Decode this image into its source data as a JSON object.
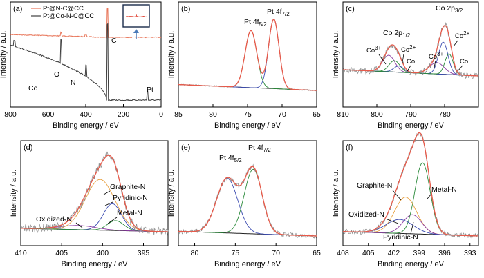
{
  "figure": {
    "panels": [
      {
        "id": "a",
        "label": "(a)",
        "type": "line",
        "xlabel": "Binding energy / eV",
        "ylabel": "Intensity / a.u.",
        "xlim": [
          800,
          0
        ],
        "xticks": [
          800,
          600,
          400,
          200,
          0
        ],
        "legend": [
          {
            "name": "Pt@N-C@CC",
            "color": "#e8765a"
          },
          {
            "name": "Pt@Co-N-C@CC",
            "color": "#404040"
          }
        ],
        "peak_labels": [
          {
            "text": "Co",
            "x": 778
          },
          {
            "text": "O",
            "x": 531
          },
          {
            "text": "N",
            "x": 399
          },
          {
            "text": "C",
            "x": 284
          },
          {
            "text": "Pt",
            "x": 71
          }
        ]
      },
      {
        "id": "b",
        "label": "(b)",
        "type": "line",
        "xlabel": "Binding energy / eV",
        "ylabel": "Intensity / a.u.",
        "xlim": [
          85,
          65
        ],
        "xticks": [
          85,
          80,
          75,
          70,
          65
        ],
        "peak_labels": [
          {
            "text": "Pt 4f",
            "sub": "5/2"
          },
          {
            "text": "Pt 4f",
            "sub": "7/2"
          }
        ],
        "peaks": [
          {
            "center": 74.5,
            "height": 0.78,
            "width": 0.85,
            "color": "#2a8a3a"
          },
          {
            "center": 71.2,
            "height": 0.95,
            "width": 0.75,
            "color": "#3a4ab0"
          }
        ]
      },
      {
        "id": "c",
        "label": "(c)",
        "type": "line",
        "xlabel": "Binding energy / eV",
        "ylabel": "Intensity / a.u.",
        "xlim": [
          810,
          770
        ],
        "xticks": [
          810,
          800,
          790,
          780
        ],
        "peak_labels": [
          {
            "text": "Co 2p",
            "sub": "3/2"
          },
          {
            "text": "Co 2p",
            "sub": "1/2"
          },
          {
            "text": "Co",
            "sup": "3+"
          },
          {
            "text": "Co",
            "sup": "2+"
          },
          {
            "text": "Co"
          },
          {
            "text": "Co",
            "sup": "3+"
          },
          {
            "text": "Co",
            "sup": "2+"
          },
          {
            "text": "Co"
          }
        ],
        "peaks": [
          {
            "center": 796.5,
            "height": 0.32,
            "width": 1.8,
            "color": "#8a3aa0"
          },
          {
            "center": 794.8,
            "height": 0.22,
            "width": 1.6,
            "color": "#2a8a3a"
          },
          {
            "center": 793.5,
            "height": 0.12,
            "width": 1.5,
            "color": "#3a4ab0"
          },
          {
            "center": 782.3,
            "height": 0.22,
            "width": 2.2,
            "color": "#8a3aa0"
          },
          {
            "center": 780.4,
            "height": 0.62,
            "width": 1.4,
            "color": "#3a4ab0"
          },
          {
            "center": 778.7,
            "height": 0.4,
            "width": 1.2,
            "color": "#2a8a3a"
          }
        ]
      },
      {
        "id": "d",
        "label": "(d)",
        "type": "line",
        "xlabel": "Binding energy / eV",
        "ylabel": "Intensity / a.u.",
        "xlim": [
          410,
          392
        ],
        "xticks": [
          410,
          405,
          400,
          395
        ],
        "peak_labels": [
          {
            "text": "Graphite-N"
          },
          {
            "text": "Pyridinic-N"
          },
          {
            "text": "Metal-N"
          },
          {
            "text": "Oxidized-N"
          }
        ],
        "peaks": [
          {
            "center": 400.3,
            "height": 0.72,
            "width": 1.8,
            "color": "#e8a040"
          },
          {
            "center": 398.8,
            "height": 0.38,
            "width": 1.1,
            "color": "#3a4ab0"
          },
          {
            "center": 398.4,
            "height": 0.14,
            "width": 1.0,
            "color": "#2a8a3a"
          },
          {
            "center": 403.0,
            "height": 0.06,
            "width": 2.2,
            "color": "#8a3aa0"
          }
        ]
      },
      {
        "id": "e",
        "label": "(e)",
        "type": "line",
        "xlabel": "Binding energy / eV",
        "ylabel": "Intensity / a.u.",
        "xlim": [
          82,
          65
        ],
        "xticks": [
          80,
          75,
          70,
          65
        ],
        "peak_labels": [
          {
            "text": "Pt 4f",
            "sub": "5/2"
          },
          {
            "text": "Pt 4f",
            "sub": "7/2"
          }
        ],
        "peaks": [
          {
            "center": 76.0,
            "height": 0.72,
            "width": 1.3,
            "color": "#3a4ab0"
          },
          {
            "center": 72.8,
            "height": 0.85,
            "width": 1.1,
            "color": "#2a8a3a"
          }
        ]
      },
      {
        "id": "f",
        "label": "(f)",
        "type": "line",
        "xlabel": "Binding energy / eV",
        "ylabel": "Intensity / a.u.",
        "xlim": [
          408,
          392
        ],
        "xticks": [
          408,
          405,
          402,
          399,
          396,
          393
        ],
        "peak_labels": [
          {
            "text": "Graphite-N"
          },
          {
            "text": "Metal-N"
          },
          {
            "text": "Oxidized-N"
          },
          {
            "text": "Pyridinic-N"
          }
        ],
        "peaks": [
          {
            "center": 398.6,
            "height": 0.82,
            "width": 0.9,
            "color": "#2a8a3a"
          },
          {
            "center": 400.6,
            "height": 0.42,
            "width": 1.3,
            "color": "#e8a040"
          },
          {
            "center": 399.8,
            "height": 0.22,
            "width": 1.1,
            "color": "#8a3aa0"
          },
          {
            "center": 401.3,
            "height": 0.16,
            "width": 1.6,
            "color": "#3a4ab0"
          }
        ]
      }
    ]
  },
  "colors": {
    "raw": "#909090",
    "envelope": "#e85a4a",
    "background": "#202020",
    "axis": "#000000",
    "orange_spectrum": "#e8765a",
    "black_spectrum": "#404040",
    "inset_arrow": "#4a7ab8"
  }
}
